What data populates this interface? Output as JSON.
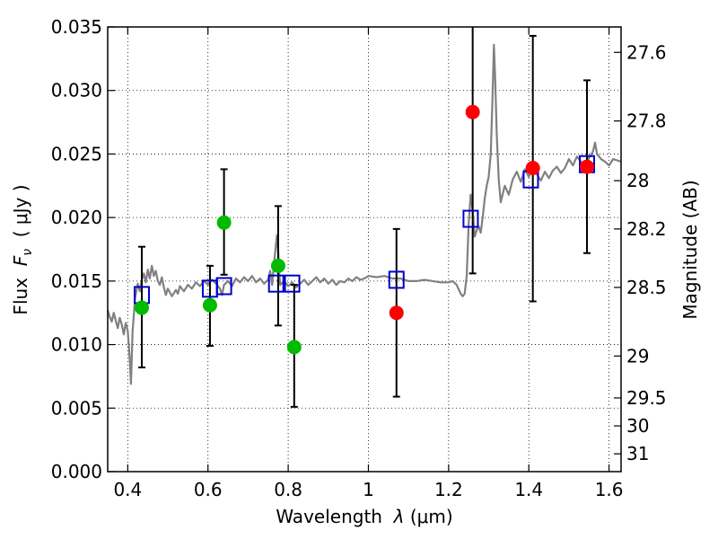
{
  "chart_data": {
    "type": "scatter",
    "xlabel_parts": {
      "prefix": "Wavelength  ",
      "symbol": "λ",
      "unit": " (μm)"
    },
    "ylabel_parts": {
      "prefix": "Flux  ",
      "symbol": "F",
      "subscript": "ν",
      "unit": "  ( μJy )"
    },
    "y2label": "Magnitude (AB)",
    "xlim": [
      0.35,
      1.63
    ],
    "ylim": [
      0,
      0.035
    ],
    "grid": true,
    "x_ticks": [
      {
        "value": 0.4,
        "label": "0.4"
      },
      {
        "value": 0.6,
        "label": "0.6"
      },
      {
        "value": 0.8,
        "label": "0.8"
      },
      {
        "value": 1.0,
        "label": "1"
      },
      {
        "value": 1.2,
        "label": "1.2"
      },
      {
        "value": 1.4,
        "label": "1.4"
      },
      {
        "value": 1.6,
        "label": "1.6"
      }
    ],
    "y_ticks": [
      {
        "value": 0.0,
        "label": "0.000"
      },
      {
        "value": 0.005,
        "label": "0.005"
      },
      {
        "value": 0.01,
        "label": "0.010"
      },
      {
        "value": 0.015,
        "label": "0.015"
      },
      {
        "value": 0.02,
        "label": "0.020"
      },
      {
        "value": 0.025,
        "label": "0.025"
      },
      {
        "value": 0.03,
        "label": "0.030"
      },
      {
        "value": 0.035,
        "label": "0.035"
      }
    ],
    "y2_ticks": [
      {
        "label": "27.6",
        "flux": 0.033
      },
      {
        "label": "27.8",
        "flux": 0.0276
      },
      {
        "label": "28",
        "flux": 0.0229
      },
      {
        "label": "28.2",
        "flux": 0.0191
      },
      {
        "label": "28.5",
        "flux": 0.0145
      },
      {
        "label": "29",
        "flux": 0.0091
      },
      {
        "label": "29.5",
        "flux": 0.0058
      },
      {
        "label": "30",
        "flux": 0.0036
      },
      {
        "label": "31",
        "flux": 0.0014
      }
    ],
    "series": [
      {
        "kind": "template_spectrum",
        "color": "#808080",
        "points": [
          [
            0.35,
            0.0127
          ],
          [
            0.355,
            0.0122
          ],
          [
            0.36,
            0.0118
          ],
          [
            0.365,
            0.0125
          ],
          [
            0.37,
            0.0119
          ],
          [
            0.375,
            0.0113
          ],
          [
            0.38,
            0.0121
          ],
          [
            0.385,
            0.0116
          ],
          [
            0.39,
            0.0108
          ],
          [
            0.395,
            0.0117
          ],
          [
            0.4,
            0.0111
          ],
          [
            0.405,
            0.0088
          ],
          [
            0.408,
            0.0069
          ],
          [
            0.412,
            0.011
          ],
          [
            0.418,
            0.0136
          ],
          [
            0.425,
            0.0148
          ],
          [
            0.43,
            0.0142
          ],
          [
            0.435,
            0.0151
          ],
          [
            0.44,
            0.0156
          ],
          [
            0.445,
            0.0149
          ],
          [
            0.45,
            0.0159
          ],
          [
            0.455,
            0.0152
          ],
          [
            0.46,
            0.0162
          ],
          [
            0.465,
            0.0154
          ],
          [
            0.47,
            0.0158
          ],
          [
            0.475,
            0.015
          ],
          [
            0.48,
            0.0147
          ],
          [
            0.485,
            0.0153
          ],
          [
            0.49,
            0.0145
          ],
          [
            0.495,
            0.0139
          ],
          [
            0.5,
            0.0144
          ],
          [
            0.505,
            0.0141
          ],
          [
            0.51,
            0.0138
          ],
          [
            0.52,
            0.0143
          ],
          [
            0.525,
            0.014
          ],
          [
            0.53,
            0.0146
          ],
          [
            0.54,
            0.0142
          ],
          [
            0.55,
            0.0147
          ],
          [
            0.56,
            0.0144
          ],
          [
            0.57,
            0.0149
          ],
          [
            0.58,
            0.0146
          ],
          [
            0.59,
            0.015
          ],
          [
            0.6,
            0.0147
          ],
          [
            0.61,
            0.0151
          ],
          [
            0.62,
            0.0148
          ],
          [
            0.63,
            0.0144
          ],
          [
            0.635,
            0.0139
          ],
          [
            0.64,
            0.0147
          ],
          [
            0.65,
            0.015
          ],
          [
            0.66,
            0.0146
          ],
          [
            0.67,
            0.0152
          ],
          [
            0.68,
            0.0149
          ],
          [
            0.69,
            0.0153
          ],
          [
            0.7,
            0.015
          ],
          [
            0.71,
            0.0154
          ],
          [
            0.72,
            0.0149
          ],
          [
            0.73,
            0.0152
          ],
          [
            0.74,
            0.0148
          ],
          [
            0.75,
            0.0151
          ],
          [
            0.755,
            0.0158
          ],
          [
            0.76,
            0.0147
          ],
          [
            0.765,
            0.0165
          ],
          [
            0.77,
            0.018
          ],
          [
            0.772,
            0.0186
          ],
          [
            0.775,
            0.0175
          ],
          [
            0.778,
            0.0155
          ],
          [
            0.78,
            0.0147
          ],
          [
            0.79,
            0.015
          ],
          [
            0.8,
            0.0146
          ],
          [
            0.81,
            0.0149
          ],
          [
            0.82,
            0.0145
          ],
          [
            0.83,
            0.0148
          ],
          [
            0.84,
            0.0151
          ],
          [
            0.85,
            0.0147
          ],
          [
            0.86,
            0.015
          ],
          [
            0.87,
            0.0153
          ],
          [
            0.88,
            0.0149
          ],
          [
            0.89,
            0.0152
          ],
          [
            0.9,
            0.0148
          ],
          [
            0.91,
            0.0151
          ],
          [
            0.92,
            0.0147
          ],
          [
            0.93,
            0.015
          ],
          [
            0.94,
            0.0149
          ],
          [
            0.95,
            0.0152
          ],
          [
            0.96,
            0.015
          ],
          [
            0.97,
            0.0153
          ],
          [
            0.98,
            0.0151
          ],
          [
            0.99,
            0.0152
          ],
          [
            1.0,
            0.0154
          ],
          [
            1.02,
            0.0153
          ],
          [
            1.04,
            0.0154
          ],
          [
            1.06,
            0.0152
          ],
          [
            1.08,
            0.0152
          ],
          [
            1.1,
            0.015
          ],
          [
            1.12,
            0.015
          ],
          [
            1.14,
            0.0151
          ],
          [
            1.16,
            0.015
          ],
          [
            1.18,
            0.0149
          ],
          [
            1.2,
            0.0149
          ],
          [
            1.21,
            0.015
          ],
          [
            1.22,
            0.0147
          ],
          [
            1.23,
            0.014
          ],
          [
            1.235,
            0.0138
          ],
          [
            1.24,
            0.014
          ],
          [
            1.245,
            0.0154
          ],
          [
            1.25,
            0.0195
          ],
          [
            1.255,
            0.0218
          ],
          [
            1.26,
            0.0205
          ],
          [
            1.265,
            0.0185
          ],
          [
            1.27,
            0.019
          ],
          [
            1.275,
            0.0193
          ],
          [
            1.28,
            0.0188
          ],
          [
            1.285,
            0.02
          ],
          [
            1.29,
            0.0215
          ],
          [
            1.295,
            0.0225
          ],
          [
            1.3,
            0.0232
          ],
          [
            1.305,
            0.025
          ],
          [
            1.31,
            0.03
          ],
          [
            1.313,
            0.0336
          ],
          [
            1.316,
            0.031
          ],
          [
            1.32,
            0.0265
          ],
          [
            1.325,
            0.023
          ],
          [
            1.33,
            0.0212
          ],
          [
            1.34,
            0.0225
          ],
          [
            1.35,
            0.0218
          ],
          [
            1.36,
            0.023
          ],
          [
            1.37,
            0.0236
          ],
          [
            1.38,
            0.0228
          ],
          [
            1.39,
            0.0238
          ],
          [
            1.4,
            0.0232
          ],
          [
            1.41,
            0.024
          ],
          [
            1.42,
            0.0234
          ],
          [
            1.43,
            0.0229
          ],
          [
            1.44,
            0.0236
          ],
          [
            1.45,
            0.0231
          ],
          [
            1.46,
            0.0237
          ],
          [
            1.47,
            0.024
          ],
          [
            1.48,
            0.0235
          ],
          [
            1.49,
            0.0239
          ],
          [
            1.5,
            0.0246
          ],
          [
            1.51,
            0.0241
          ],
          [
            1.52,
            0.0248
          ],
          [
            1.53,
            0.0244
          ],
          [
            1.54,
            0.0241
          ],
          [
            1.55,
            0.0247
          ],
          [
            1.56,
            0.0252
          ],
          [
            1.565,
            0.0259
          ],
          [
            1.57,
            0.025
          ],
          [
            1.58,
            0.0246
          ],
          [
            1.59,
            0.0244
          ],
          [
            1.6,
            0.0241
          ],
          [
            1.61,
            0.0246
          ],
          [
            1.62,
            0.0245
          ],
          [
            1.63,
            0.0244
          ]
        ]
      },
      {
        "kind": "model_photometry",
        "marker": "square",
        "color": "#0000cc",
        "points": [
          [
            0.435,
            0.0139
          ],
          [
            0.605,
            0.0144
          ],
          [
            0.64,
            0.0146
          ],
          [
            0.77,
            0.0148
          ],
          [
            0.81,
            0.0148
          ],
          [
            1.07,
            0.0151
          ],
          [
            1.255,
            0.0199
          ],
          [
            1.405,
            0.023
          ],
          [
            1.545,
            0.0242
          ]
        ]
      },
      {
        "kind": "observed_optical",
        "marker": "circle",
        "color": "#00bb00",
        "points": [
          {
            "x": 0.435,
            "y": 0.0129,
            "err_low": 0.0082,
            "err_high": 0.0177
          },
          {
            "x": 0.605,
            "y": 0.0131,
            "err_low": 0.0099,
            "err_high": 0.0162
          },
          {
            "x": 0.64,
            "y": 0.0196,
            "err_low": 0.0155,
            "err_high": 0.0238
          },
          {
            "x": 0.775,
            "y": 0.0162,
            "err_low": 0.0115,
            "err_high": 0.0209
          },
          {
            "x": 0.815,
            "y": 0.0098,
            "err_low": 0.0051,
            "err_high": 0.0147
          }
        ]
      },
      {
        "kind": "observed_nir",
        "marker": "circle",
        "color": "#ff0000",
        "points": [
          {
            "x": 1.07,
            "y": 0.0125,
            "err_low": 0.0059,
            "err_high": 0.0191
          },
          {
            "x": 1.26,
            "y": 0.0283,
            "err_low": 0.0156,
            "err_high": 0.035
          },
          {
            "x": 1.41,
            "y": 0.0239,
            "err_low": 0.0134,
            "err_high": 0.0343
          },
          {
            "x": 1.545,
            "y": 0.024,
            "err_low": 0.0172,
            "err_high": 0.0308
          }
        ]
      }
    ]
  }
}
